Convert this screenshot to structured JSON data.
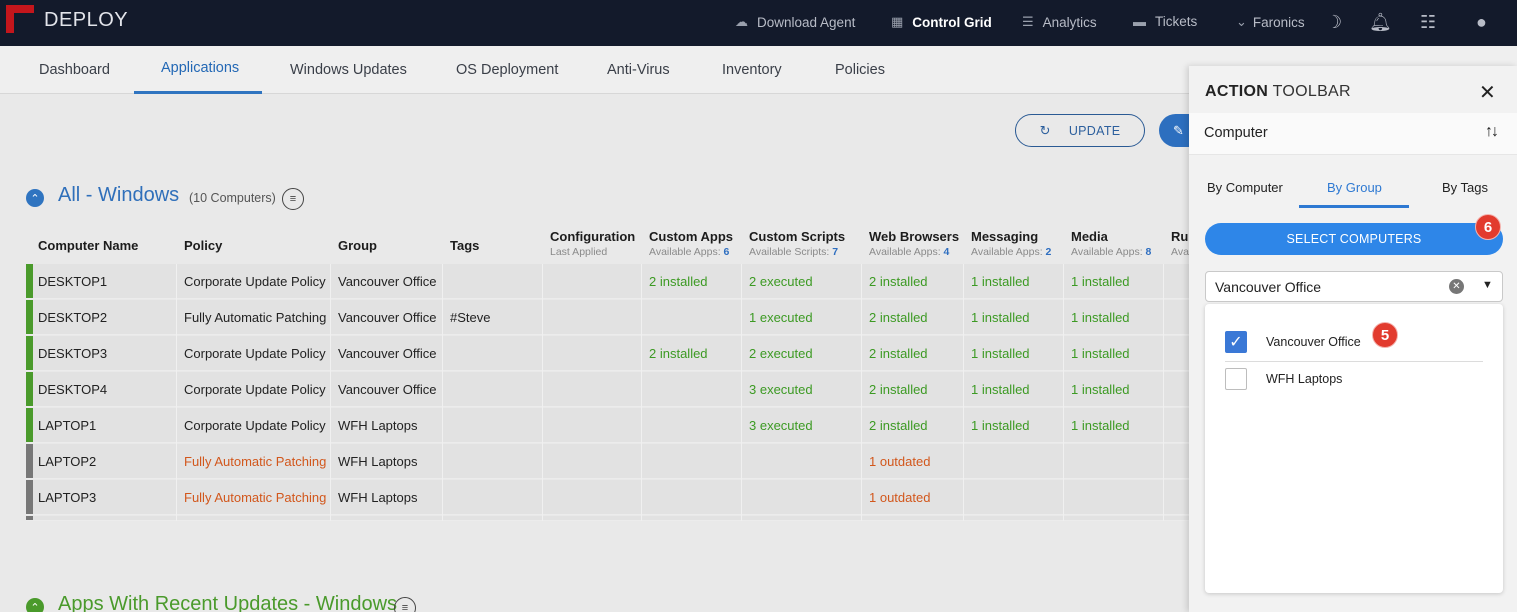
{
  "topbar": {
    "brand": "DEPLOY",
    "nav": [
      {
        "label": "Download Agent",
        "icon": "cloud-download-icon"
      },
      {
        "label": "Control Grid",
        "icon": "grid-icon",
        "active": true
      },
      {
        "label": "Analytics",
        "icon": "list-icon"
      },
      {
        "label": "Tickets",
        "icon": "ticket-icon"
      },
      {
        "label": "Faronics",
        "icon": "chevron-down-icon"
      }
    ],
    "icons": [
      "moon-icon",
      "bell-icon",
      "checklist-icon",
      "user-icon"
    ]
  },
  "subnav": {
    "tabs": [
      "Dashboard",
      "Applications",
      "Windows Updates",
      "OS Deployment",
      "Anti-Virus",
      "Inventory",
      "Policies"
    ],
    "active": "Applications"
  },
  "toolbar": {
    "update_label": "UPDATE"
  },
  "section1": {
    "title": "All - Windows",
    "count": "(10 Computers)"
  },
  "section2": {
    "title": "Apps With Recent Updates - Windows"
  },
  "table": {
    "headers": {
      "computer": "Computer Name",
      "policy": "Policy",
      "group": "Group",
      "tags": "Tags",
      "configuration": "Configuration",
      "configuration_sub": "Last Applied",
      "custom_apps": "Custom Apps",
      "custom_apps_sub": "Available Apps:",
      "custom_apps_count": "6",
      "custom_scripts": "Custom Scripts",
      "custom_scripts_sub": "Available Scripts:",
      "custom_scripts_count": "7",
      "web_browsers": "Web Browsers",
      "web_browsers_sub": "Available Apps:",
      "web_browsers_count": "4",
      "messaging": "Messaging",
      "messaging_sub": "Available Apps:",
      "messaging_count": "2",
      "media": "Media",
      "media_sub": "Available Apps:",
      "media_count": "8",
      "runtimes": "Ru",
      "runtimes_sub": "Ava"
    },
    "rows": [
      {
        "name": "DESKTOP1",
        "policy": "Corporate Update Policy",
        "group": "Vancouver Office",
        "tags": "",
        "apps": "2 installed",
        "scripts": "2 executed",
        "browsers": "2 installed",
        "messaging": "1 installed",
        "media": "1 installed",
        "status": "ok"
      },
      {
        "name": "DESKTOP2",
        "policy": "Fully Automatic Patching",
        "group": "Vancouver Office",
        "tags": "#Steve",
        "apps": "",
        "scripts": "1 executed",
        "browsers": "2 installed",
        "messaging": "1 installed",
        "media": "1 installed",
        "status": "ok"
      },
      {
        "name": "DESKTOP3",
        "policy": "Corporate Update Policy",
        "group": "Vancouver Office",
        "tags": "",
        "apps": "2 installed",
        "scripts": "2 executed",
        "browsers": "2 installed",
        "messaging": "1 installed",
        "media": "1 installed",
        "status": "ok"
      },
      {
        "name": "DESKTOP4",
        "policy": "Corporate Update Policy",
        "group": "Vancouver Office",
        "tags": "",
        "apps": "",
        "scripts": "3 executed",
        "browsers": "2 installed",
        "messaging": "1 installed",
        "media": "1 installed",
        "status": "ok"
      },
      {
        "name": "LAPTOP1",
        "policy": "Corporate Update Policy",
        "group": "WFH Laptops",
        "tags": "",
        "apps": "",
        "scripts": "3 executed",
        "browsers": "2 installed",
        "messaging": "1 installed",
        "media": "1 installed",
        "status": "ok"
      },
      {
        "name": "LAPTOP2",
        "policy": "Fully Automatic Patching",
        "group": "WFH Laptops",
        "tags": "",
        "apps": "",
        "scripts": "",
        "browsers": "1 outdated",
        "messaging": "",
        "media": "",
        "status": "warn"
      },
      {
        "name": "LAPTOP3",
        "policy": "Fully Automatic Patching",
        "group": "WFH Laptops",
        "tags": "",
        "apps": "",
        "scripts": "",
        "browsers": "1 outdated",
        "messaging": "",
        "media": "",
        "status": "warn"
      }
    ]
  },
  "panel": {
    "title_bold": "ACTION",
    "title_rest": "TOOLBAR",
    "scope": "Computer",
    "tabs": [
      "By Computer",
      "By Group",
      "By Tags"
    ],
    "active_tab": "By Group",
    "select_button": "SELECT COMPUTERS",
    "select_badge": "6",
    "group_value": "Vancouver Office",
    "options": [
      {
        "label": "Vancouver Office",
        "checked": true,
        "badge": "5"
      },
      {
        "label": "WFH Laptops",
        "checked": false
      }
    ]
  },
  "colors": {
    "ok": "#4a9a2b",
    "warn": "#777777",
    "accent": "#2e86e8",
    "badge": "#e23b2e"
  }
}
